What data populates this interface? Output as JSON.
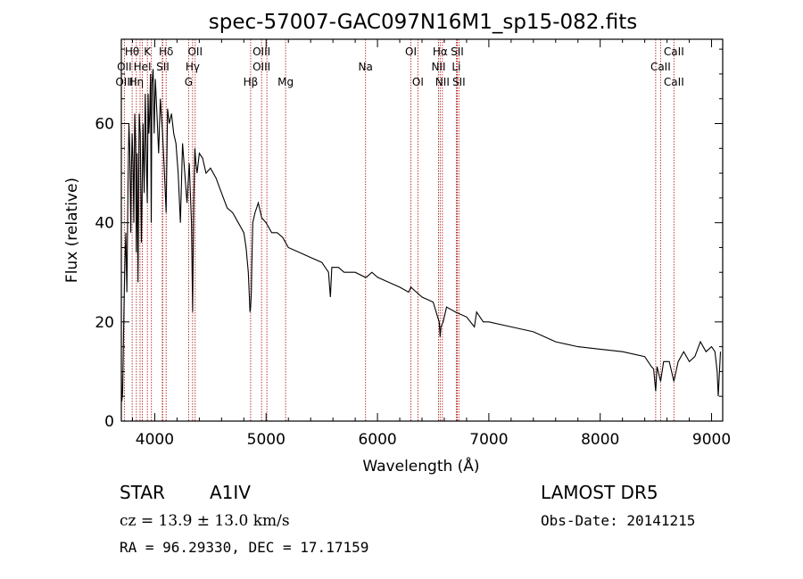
{
  "chart_data": {
    "type": "line",
    "title": "spec-57007-GAC097N16M1_sp15-082.fits",
    "xlabel": "Wavelength (Å)",
    "ylabel": "Flux (relative)",
    "xlim": [
      3700,
      9100
    ],
    "ylim": [
      0,
      77
    ],
    "xticks": [
      4000,
      5000,
      6000,
      7000,
      8000,
      9000
    ],
    "yticks": [
      0,
      20,
      40,
      60
    ],
    "grid": false,
    "series": [
      {
        "x": [
          3700,
          3705,
          3712,
          3720,
          3730,
          3740,
          3750,
          3760,
          3768,
          3775,
          3785,
          3790,
          3797,
          3805,
          3812,
          3820,
          3828,
          3835,
          3842,
          3850,
          3860,
          3870,
          3880,
          3889,
          3895,
          3905,
          3915,
          3925,
          3933,
          3940,
          3947,
          3955,
          3962,
          3968,
          3975,
          3985,
          3995,
          4005,
          4020,
          4035,
          4050,
          4070,
          4085,
          4102,
          4115,
          4130,
          4150,
          4170,
          4190,
          4210,
          4230,
          4250,
          4270,
          4290,
          4310,
          4330,
          4340,
          4350,
          4360,
          4370,
          4380,
          4400,
          4430,
          4460,
          4500,
          4550,
          4600,
          4650,
          4700,
          4750,
          4800,
          4820,
          4840,
          4850,
          4855,
          4861,
          4867,
          4872,
          4880,
          4900,
          4930,
          4960,
          5000,
          5050,
          5100,
          5150,
          5200,
          5300,
          5400,
          5500,
          5560,
          5577,
          5590,
          5650,
          5700,
          5800,
          5890,
          5900,
          5950,
          6000,
          6100,
          6200,
          6280,
          6300,
          6400,
          6500,
          6540,
          6555,
          6563,
          6570,
          6590,
          6620,
          6700,
          6800,
          6870,
          6890,
          6950,
          7000,
          7200,
          7400,
          7600,
          7800,
          8000,
          8200,
          8400,
          8460,
          8480,
          8498,
          8510,
          8542,
          8570,
          8620,
          8662,
          8700,
          8750,
          8800,
          8850,
          8900,
          8950,
          9000,
          9030,
          9050,
          9060,
          9080
        ],
        "y": [
          10,
          4,
          6,
          18,
          30,
          38,
          26,
          48,
          60,
          55,
          38,
          50,
          58,
          52,
          40,
          62,
          56,
          34,
          54,
          28,
          62,
          58,
          36,
          50,
          60,
          46,
          66,
          52,
          44,
          66,
          58,
          62,
          70,
          40,
          68,
          71,
          58,
          69,
          62,
          54,
          65,
          58,
          51,
          42,
          63,
          60,
          62,
          58,
          56,
          50,
          40,
          56,
          50,
          44,
          52,
          40,
          22,
          44,
          55,
          52,
          50,
          54,
          53,
          50,
          51,
          49,
          46,
          43,
          42,
          40,
          38,
          35,
          30,
          25,
          22,
          23,
          26,
          32,
          40,
          42,
          44,
          41,
          40,
          38,
          38,
          37,
          35,
          34,
          33,
          32,
          30,
          25,
          31,
          31,
          30,
          30,
          29,
          29,
          30,
          29,
          28,
          27,
          26,
          27,
          25,
          24,
          21,
          20,
          17,
          19,
          20,
          23,
          22,
          21,
          19,
          22,
          20,
          20,
          19,
          18,
          16,
          15,
          14.5,
          14,
          13,
          11,
          10.5,
          6,
          11,
          8,
          12,
          12,
          8,
          12,
          14,
          12,
          13,
          16,
          14,
          15,
          14,
          10,
          5,
          14
        ]
      }
    ],
    "line_markers": [
      {
        "label": "Hθ",
        "x": 3797,
        "row": 1
      },
      {
        "label": "K",
        "x": 3934,
        "row": 1
      },
      {
        "label": "Hδ",
        "x": 4102,
        "row": 1
      },
      {
        "label": "OII",
        "x": 4363,
        "row": 1
      },
      {
        "label": "OIII",
        "x": 4959,
        "row": 1
      },
      {
        "label": "OI",
        "x": 6300,
        "row": 1
      },
      {
        "label": "Hα",
        "x": 6563,
        "row": 1
      },
      {
        "label": "SII",
        "x": 6716,
        "row": 1
      },
      {
        "label": "CaII",
        "x": 8662,
        "row": 1
      },
      {
        "label": "OII",
        "x": 3727,
        "row": 2
      },
      {
        "label": "HeI",
        "x": 3889,
        "row": 2
      },
      {
        "label": "SII",
        "x": 4072,
        "row": 2
      },
      {
        "label": "Hγ",
        "x": 4340,
        "row": 2
      },
      {
        "label": "OIII",
        "x": 4959,
        "row": 2
      },
      {
        "label": "Na",
        "x": 5893,
        "row": 2
      },
      {
        "label": "NII",
        "x": 6548,
        "row": 2
      },
      {
        "label": "Li",
        "x": 6708,
        "row": 2
      },
      {
        "label": "CaII",
        "x": 8542,
        "row": 2
      },
      {
        "label": "OIII",
        "x": 3727,
        "row": 3
      },
      {
        "label": "Hη",
        "x": 3835,
        "row": 3
      },
      {
        "label": "G",
        "x": 4304,
        "row": 3
      },
      {
        "label": "Hβ",
        "x": 4861,
        "row": 3
      },
      {
        "label": "Mg",
        "x": 5175,
        "row": 3
      },
      {
        "label": "OI",
        "x": 6363,
        "row": 3
      },
      {
        "label": "NII",
        "x": 6583,
        "row": 3
      },
      {
        "label": "SII",
        "x": 6731,
        "row": 3
      },
      {
        "label": "CaII",
        "x": 8662,
        "row": 3
      }
    ],
    "extra_marker_lines": [
      3868,
      3970,
      4068,
      5007,
      6716,
      8498
    ]
  },
  "info": {
    "object_class": "STAR",
    "subclass": "A1IV",
    "survey": "LAMOST DR5",
    "cz": "cz = 13.9 ± 13.0 km/s",
    "obs_date": "Obs-Date: 20141215",
    "coords": "RA =  96.29330, DEC =  17.17159"
  },
  "colors": {
    "axis": "#000000",
    "marker_line": "#b22222",
    "spectrum": "#000000"
  }
}
